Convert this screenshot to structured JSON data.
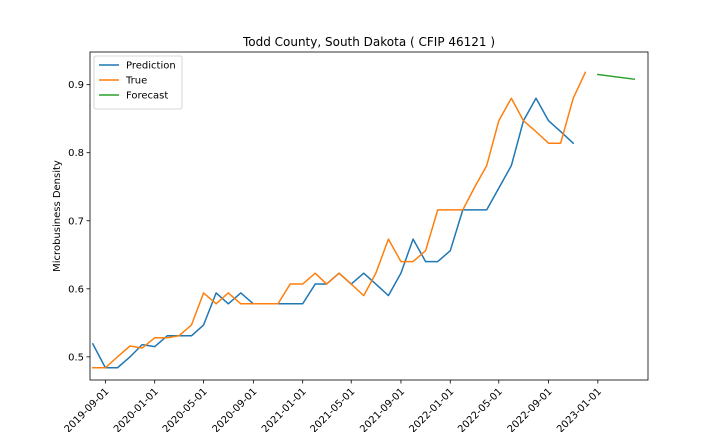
{
  "chart_data": {
    "type": "line",
    "title": "Todd County, South Dakota ( CFIP 46121 )",
    "xlabel": "",
    "ylabel": "Microbusiness Density",
    "xlim": [
      "2019-07-25",
      "2023-05-05"
    ],
    "ylim": [
      0.466,
      0.948
    ],
    "x_ticks": [
      "2019-09-01",
      "2020-01-01",
      "2020-05-01",
      "2020-09-01",
      "2021-01-01",
      "2021-05-01",
      "2021-09-01",
      "2022-01-01",
      "2022-05-01",
      "2022-09-01",
      "2023-01-01"
    ],
    "y_ticks": [
      0.5,
      0.6,
      0.7,
      0.8,
      0.9
    ],
    "y_tick_labels": [
      "0.5",
      "0.6",
      "0.7",
      "0.8",
      "0.9"
    ],
    "grid": false,
    "legend_position": "top-left",
    "series": [
      {
        "name": "Prediction",
        "color": "#1f77b4",
        "x": [
          "2019-08-01",
          "2019-09-01",
          "2019-10-01",
          "2019-11-01",
          "2019-12-01",
          "2020-01-01",
          "2020-02-01",
          "2020-03-01",
          "2020-04-01",
          "2020-05-01",
          "2020-06-01",
          "2020-07-01",
          "2020-08-01",
          "2020-09-01",
          "2020-10-01",
          "2020-11-01",
          "2020-12-01",
          "2021-01-01",
          "2021-02-01",
          "2021-03-01",
          "2021-04-01",
          "2021-05-01",
          "2021-06-01",
          "2021-07-01",
          "2021-08-01",
          "2021-09-01",
          "2021-10-01",
          "2021-11-01",
          "2021-12-01",
          "2022-01-01",
          "2022-02-01",
          "2022-03-01",
          "2022-04-01",
          "2022-05-01",
          "2022-06-01",
          "2022-07-01",
          "2022-08-01",
          "2022-09-01",
          "2022-10-01",
          "2022-11-01"
        ],
        "values": [
          0.519,
          0.484,
          0.484,
          0.5,
          0.518,
          0.515,
          0.531,
          0.531,
          0.531,
          0.547,
          0.594,
          0.578,
          0.594,
          0.578,
          0.578,
          0.578,
          0.578,
          0.578,
          0.607,
          0.607,
          0.623,
          0.607,
          0.623,
          0.607,
          0.59,
          0.623,
          0.673,
          0.64,
          0.64,
          0.656,
          0.716,
          0.716,
          0.716,
          0.748,
          0.781,
          0.847,
          0.88,
          0.847,
          0.831,
          0.814
        ]
      },
      {
        "name": "True",
        "color": "#ff7f0e",
        "x": [
          "2019-08-01",
          "2019-09-01",
          "2019-10-01",
          "2019-11-01",
          "2019-12-01",
          "2020-01-01",
          "2020-02-01",
          "2020-03-01",
          "2020-04-01",
          "2020-05-01",
          "2020-06-01",
          "2020-07-01",
          "2020-08-01",
          "2020-09-01",
          "2020-10-01",
          "2020-11-01",
          "2020-12-01",
          "2021-01-01",
          "2021-02-01",
          "2021-03-01",
          "2021-04-01",
          "2021-05-01",
          "2021-06-01",
          "2021-07-01",
          "2021-08-01",
          "2021-09-01",
          "2021-10-01",
          "2021-11-01",
          "2021-12-01",
          "2022-01-01",
          "2022-02-01",
          "2022-03-01",
          "2022-04-01",
          "2022-05-01",
          "2022-06-01",
          "2022-07-01",
          "2022-08-01",
          "2022-09-01",
          "2022-10-01",
          "2022-11-01",
          "2022-12-01"
        ],
        "values": [
          0.484,
          0.484,
          0.5,
          0.516,
          0.513,
          0.528,
          0.528,
          0.531,
          0.547,
          0.594,
          0.578,
          0.594,
          0.578,
          0.578,
          0.578,
          0.578,
          0.607,
          0.607,
          0.623,
          0.607,
          0.623,
          0.607,
          0.59,
          0.623,
          0.673,
          0.64,
          0.64,
          0.656,
          0.716,
          0.716,
          0.716,
          0.748,
          0.781,
          0.847,
          0.88,
          0.847,
          0.831,
          0.814,
          0.814,
          0.88,
          0.918
        ]
      },
      {
        "name": "Forecast",
        "color": "#2ca02c",
        "x": [
          "2023-01-01",
          "2023-04-01"
        ],
        "values": [
          0.915,
          0.908
        ]
      }
    ]
  }
}
